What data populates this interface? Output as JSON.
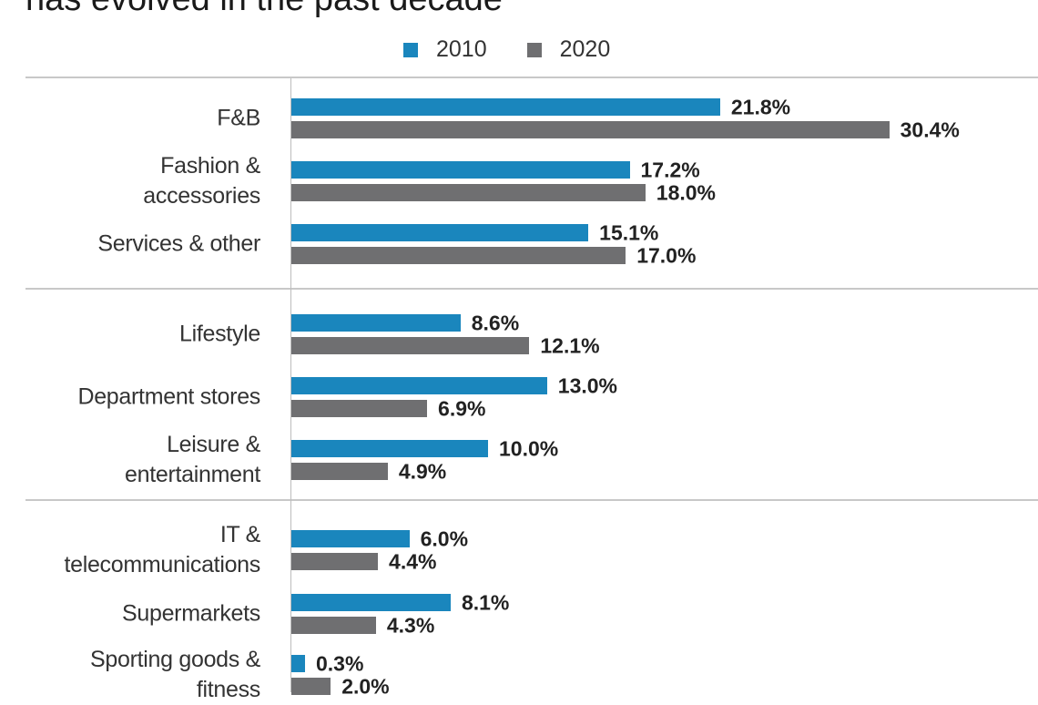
{
  "title": "has evolved in the past decade",
  "chart_data": {
    "type": "bar",
    "orientation": "horizontal",
    "title": "has evolved in the past decade",
    "categories": [
      "F&B",
      "Fashion & accessories",
      "Services & other",
      "Lifestyle",
      "Department stores",
      "Leisure & entertainment",
      "IT & telecommunications",
      "Supermarkets",
      "Sporting goods & fitness"
    ],
    "category_lines": [
      [
        "F&B"
      ],
      [
        "Fashion &",
        "accessories"
      ],
      [
        "Services & other"
      ],
      [
        "Lifestyle"
      ],
      [
        "Department stores"
      ],
      [
        "Leisure &",
        "entertainment"
      ],
      [
        "IT &",
        "telecommunications"
      ],
      [
        "Supermarkets"
      ],
      [
        "Sporting goods &",
        "fitness"
      ]
    ],
    "groups": [
      [
        0,
        1,
        2
      ],
      [
        3,
        4,
        5
      ],
      [
        6,
        7,
        8
      ]
    ],
    "series": [
      {
        "name": "2010",
        "color": "#1a86bd",
        "values": [
          21.8,
          17.2,
          15.1,
          8.6,
          13.0,
          10.0,
          6.0,
          8.1,
          0.3
        ],
        "labels": [
          "21.8%",
          "17.2%",
          "15.1%",
          "8.6%",
          "13.0%",
          "10.0%",
          "6.0%",
          "8.1%",
          "0.3%"
        ]
      },
      {
        "name": "2020",
        "color": "#6f6f71",
        "values": [
          30.4,
          18.0,
          17.0,
          12.1,
          6.9,
          4.9,
          4.4,
          4.3,
          2.0
        ],
        "labels": [
          "30.4%",
          "18.0%",
          "17.0%",
          "12.1%",
          "6.9%",
          "4.9%",
          "4.4%",
          "4.3%",
          "2.0%"
        ]
      }
    ],
    "unit": "%",
    "legend": "top",
    "grid": false
  }
}
